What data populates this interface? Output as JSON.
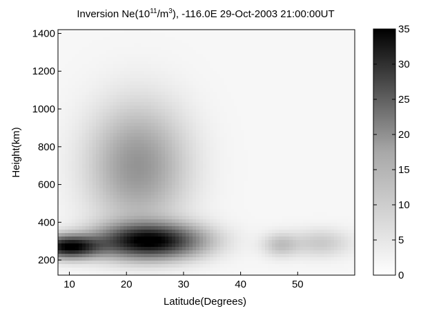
{
  "chart_data": {
    "type": "heatmap",
    "title": {
      "prefix": "Inversion Ne(10",
      "sup1": "11",
      "mid": "/m",
      "sup2": "3",
      "suffix": "), -116.0E 29-Oct-2003 21:00:00UT"
    },
    "xlabel": "Latitude(Degrees)",
    "ylabel": "Height(km)",
    "xlim": [
      8,
      60
    ],
    "ylim": [
      120,
      1420
    ],
    "x_ticks": [
      10,
      20,
      30,
      40,
      50
    ],
    "y_ticks": [
      200,
      400,
      600,
      800,
      1000,
      1200,
      1400
    ],
    "colorbar": {
      "colormap": "gray-reversed",
      "range": [
        0,
        35
      ],
      "ticks": [
        0,
        5,
        10,
        15,
        20,
        25,
        30,
        35
      ]
    },
    "features": [
      {
        "name": "main-peak",
        "lat": 24,
        "height": 300,
        "value": 35,
        "lat_half_width": 8.5,
        "height_half_width": 85
      },
      {
        "name": "southern-extension",
        "lat": 10,
        "height": 270,
        "value": 34,
        "lat_half_width": 5,
        "height_half_width": 55
      },
      {
        "name": "upper-plume",
        "lat": 22,
        "height": 700,
        "value": 12,
        "lat_half_width": 8,
        "height_half_width": 300
      },
      {
        "name": "northern-bump-1",
        "lat": 47,
        "height": 280,
        "value": 6,
        "lat_half_width": 3,
        "height_half_width": 60
      },
      {
        "name": "northern-bump-2",
        "lat": 54,
        "height": 290,
        "value": 5,
        "lat_half_width": 5,
        "height_half_width": 70
      }
    ]
  }
}
